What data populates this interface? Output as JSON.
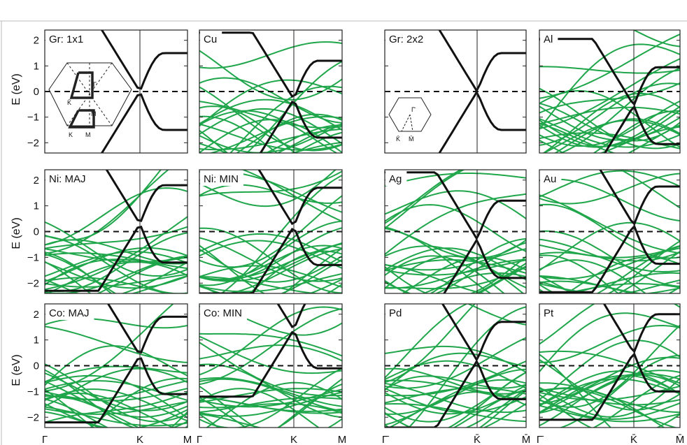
{
  "figure": {
    "ylabel": "E (eV)",
    "y_ticks": [
      "2",
      "1",
      "0",
      "−1",
      "−2"
    ],
    "left_xticks": [
      "Γ",
      "K",
      "M"
    ],
    "right_xticks": [
      "Γ̄",
      "K̄",
      "M̄"
    ],
    "colors": {
      "graphene_band": "#111111",
      "metal_band": "#1fa64a",
      "frame": "#222222"
    }
  },
  "panels": [
    {
      "id": "gr1x1",
      "title": "Gr: 1x1",
      "block": "left"
    },
    {
      "id": "cu",
      "title": "Cu",
      "block": "left"
    },
    {
      "id": "ni_maj",
      "title": "Ni: MAJ",
      "block": "left"
    },
    {
      "id": "ni_min",
      "title": "Ni: MIN",
      "block": "left"
    },
    {
      "id": "co_maj",
      "title": "Co: MAJ",
      "block": "left"
    },
    {
      "id": "co_min",
      "title": "Co: MIN",
      "block": "left"
    },
    {
      "id": "gr2x2",
      "title": "Gr: 2x2",
      "block": "right"
    },
    {
      "id": "al",
      "title": "Al",
      "block": "right"
    },
    {
      "id": "ag",
      "title": "Ag",
      "block": "right"
    },
    {
      "id": "au",
      "title": "Au",
      "block": "right"
    },
    {
      "id": "pd",
      "title": "Pd",
      "block": "right"
    },
    {
      "id": "pt",
      "title": "Pt",
      "block": "right"
    }
  ],
  "bz_inset_1x1": {
    "labels": [
      "Γ",
      "K̄",
      "M̄",
      "K",
      "M"
    ]
  },
  "bz_inset_2x2": {
    "labels": [
      "Γ̄",
      "K̄",
      "M̄"
    ]
  }
}
